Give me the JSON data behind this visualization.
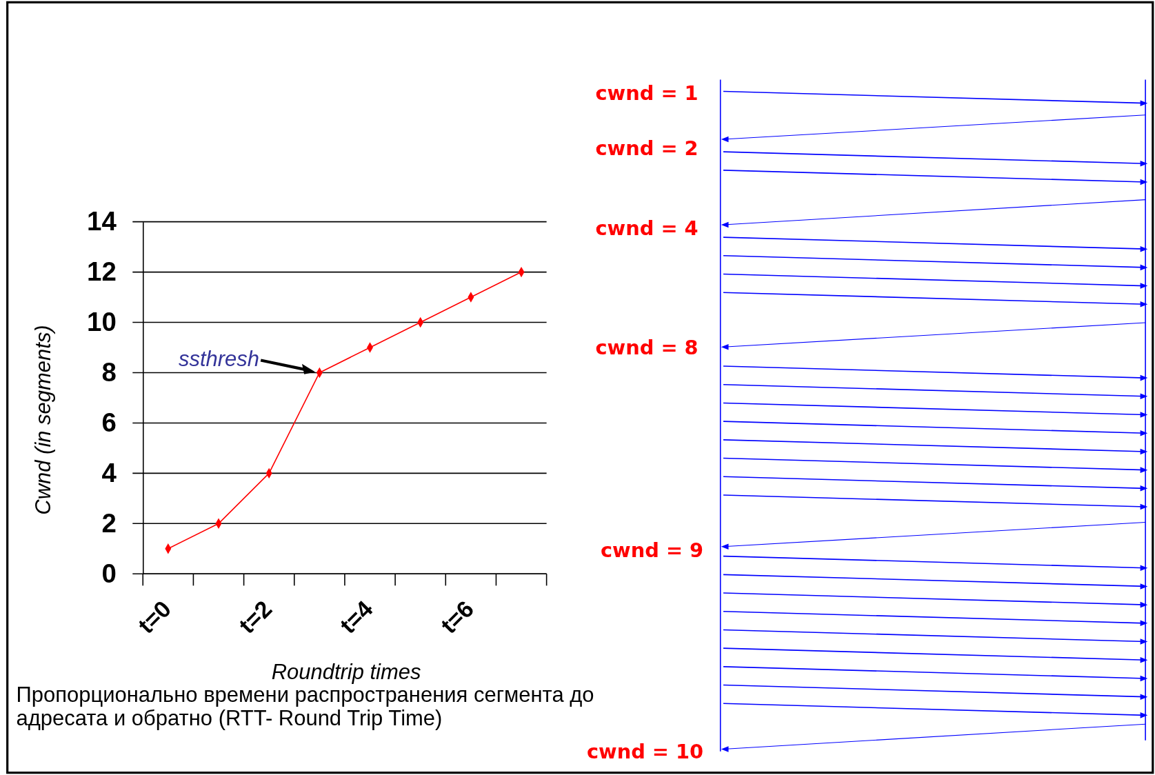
{
  "chart_data": [
    {
      "type": "line",
      "categories": [
        "t=0",
        null,
        "t=2",
        null,
        "t=4",
        null,
        "t=6",
        null
      ],
      "values": [
        1,
        2,
        4,
        8,
        9,
        10,
        11,
        12
      ],
      "color": "#ff0000",
      "marker": "diamond",
      "ylim": [
        0,
        14
      ],
      "yticks": [
        0,
        2,
        4,
        6,
        8,
        10,
        12,
        14
      ],
      "grid": "y",
      "xlabel": "Roundtrip times",
      "ylabel": "Cwnd (in segments)",
      "annotations": [
        "ssthresh",
        "Пропорционально времени распространения сегмента до адресата и обратно (RTT- Round Trip Time)"
      ]
    },
    {
      "type": "other",
      "annotations": [
        "cwnd = 1",
        "cwnd = 2",
        "cwnd = 4",
        "cwnd = 8",
        "cwnd = 9",
        "cwnd = 10"
      ]
    }
  ]
}
